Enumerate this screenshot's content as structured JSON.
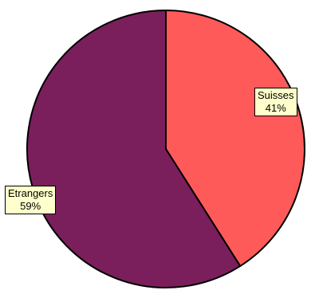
{
  "chart_data": {
    "type": "pie",
    "slices": [
      {
        "label": "Suisses",
        "value": 41,
        "value_label": "41%",
        "color": "#ff5a5a"
      },
      {
        "label": "Etrangers",
        "value": 59,
        "value_label": "59%",
        "color": "#7a1f5c"
      }
    ],
    "start_angle": "12 o'clock",
    "direction": "clockwise",
    "legend": "none"
  }
}
